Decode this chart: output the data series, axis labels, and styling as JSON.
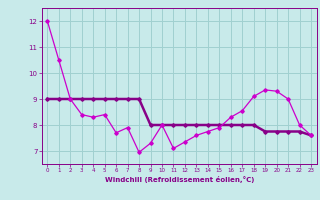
{
  "xlabel": "Windchill (Refroidissement éolien,°C)",
  "bg_color": "#c8eaea",
  "grid_color": "#a0d0d0",
  "line_color1": "#cc00cc",
  "line_color2": "#880088",
  "x_data": [
    0,
    1,
    2,
    3,
    4,
    5,
    6,
    7,
    8,
    9,
    10,
    11,
    12,
    13,
    14,
    15,
    16,
    17,
    18,
    19,
    20,
    21,
    22,
    23
  ],
  "y_line1": [
    12.0,
    10.5,
    9.0,
    8.4,
    8.3,
    8.4,
    7.7,
    7.9,
    6.95,
    7.3,
    8.0,
    7.1,
    7.35,
    7.6,
    7.75,
    7.9,
    8.3,
    8.55,
    9.1,
    9.35,
    9.3,
    9.0,
    8.0,
    7.6
  ],
  "y_line2": [
    9.0,
    9.0,
    9.0,
    9.0,
    9.0,
    9.0,
    9.0,
    9.0,
    9.0,
    8.0,
    8.0,
    8.0,
    8.0,
    8.0,
    8.0,
    8.0,
    8.0,
    8.0,
    8.0,
    7.75,
    7.75,
    7.75,
    7.75,
    7.6
  ],
  "ylim": [
    6.5,
    12.5
  ],
  "xlim": [
    -0.5,
    23.5
  ],
  "yticks": [
    7,
    8,
    9,
    10,
    11,
    12
  ],
  "xticks": [
    0,
    1,
    2,
    3,
    4,
    5,
    6,
    7,
    8,
    9,
    10,
    11,
    12,
    13,
    14,
    15,
    16,
    17,
    18,
    19,
    20,
    21,
    22,
    23
  ]
}
